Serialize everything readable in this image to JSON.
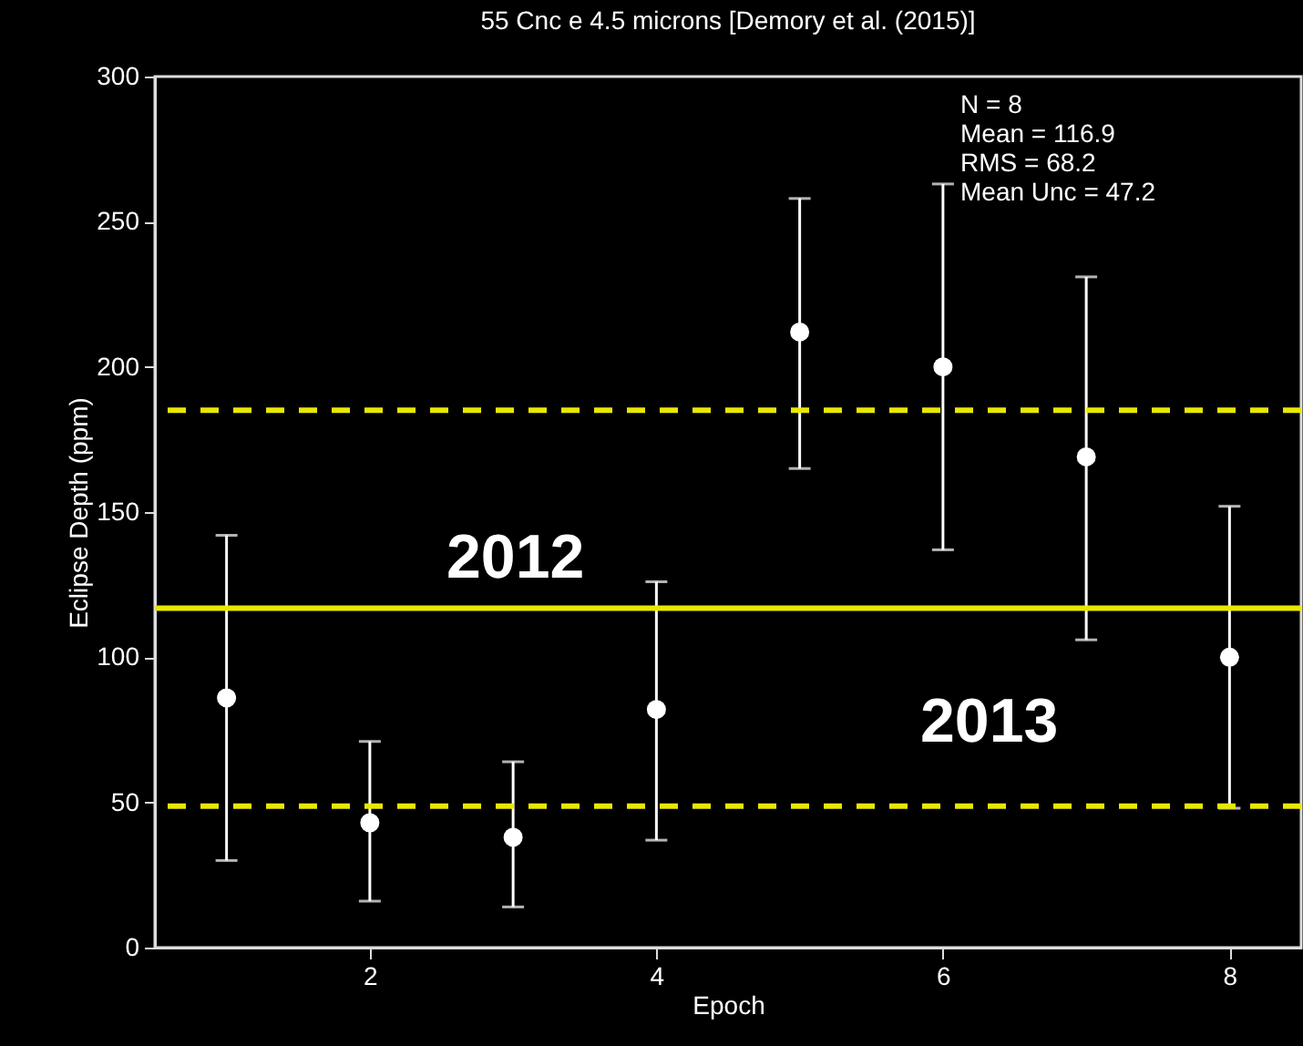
{
  "chart_data": {
    "type": "scatter",
    "title": "55 Cnc e 4.5 microns [Demory et al. (2015)]",
    "xlabel": "Epoch",
    "ylabel": "Eclipse Depth (ppm)",
    "x": [
      1,
      2,
      3,
      4,
      5,
      6,
      7,
      8
    ],
    "series": [
      {
        "color": "#ffffff",
        "values": [
          86,
          43,
          38,
          82,
          212,
          200,
          169,
          100
        ],
        "errors": [
          [
            30,
            142
          ],
          [
            16,
            71
          ],
          [
            14,
            64
          ],
          [
            37,
            126
          ],
          [
            165,
            258
          ],
          [
            137,
            263
          ],
          [
            106,
            231
          ],
          [
            48,
            152
          ]
        ]
      }
    ],
    "marker": "circle",
    "xlim": [
      0.5,
      8.5
    ],
    "xticks": [
      2,
      4,
      6,
      8
    ],
    "ylim": [
      0,
      300
    ],
    "yticks": [
      0,
      50,
      100,
      150,
      200,
      250,
      300
    ],
    "ref_lines": [
      {
        "axis": "y",
        "value": 116.9,
        "color": "#e8e800",
        "line_style": "solid"
      },
      {
        "axis": "y",
        "value": 185.1,
        "color": "#e8e800",
        "line_style": "dashed"
      },
      {
        "axis": "y",
        "value": 48.7,
        "color": "#e8e800",
        "line_style": "dashed"
      }
    ],
    "annotations": [
      "N = 8",
      "Mean = 116.9",
      "RMS = 68.2",
      "Mean Unc = 47.2",
      "2012",
      "2013"
    ],
    "grid": false
  }
}
